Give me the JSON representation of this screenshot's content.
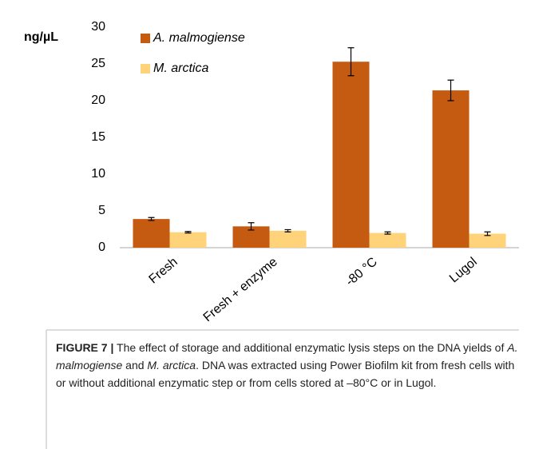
{
  "chart_data": {
    "type": "bar",
    "ylabel": "ng/µL",
    "categories": [
      "Fresh",
      "Fresh + enzyme",
      "-80 °C",
      "Lugol"
    ],
    "series": [
      {
        "name": "A. malmogiense",
        "color": "#c55a11",
        "values": [
          3.9,
          2.9,
          25.3,
          21.4
        ],
        "errors": [
          0.2,
          0.5,
          1.9,
          1.4
        ]
      },
      {
        "name": "M. arctica",
        "color": "#ffd37a",
        "values": [
          2.1,
          2.3,
          2.0,
          1.9
        ],
        "errors": [
          0.1,
          0.15,
          0.15,
          0.25
        ]
      }
    ],
    "ylim": [
      0,
      30
    ],
    "yticks": [
      0,
      5,
      10,
      15,
      20,
      25,
      30
    ],
    "grid": false,
    "legend": "top-left"
  },
  "caption": [
    "FIGURE 7 |",
    " The effect of storage and additional enzymatic lysis steps on the DNA yields of ",
    "A. malmogiense",
    " and ",
    "M. arctica",
    ". DNA was extracted using Power Biofilm kit from fresh cells with or without additional enzymatic step or from cells stored at –80°C or in Lugol."
  ]
}
